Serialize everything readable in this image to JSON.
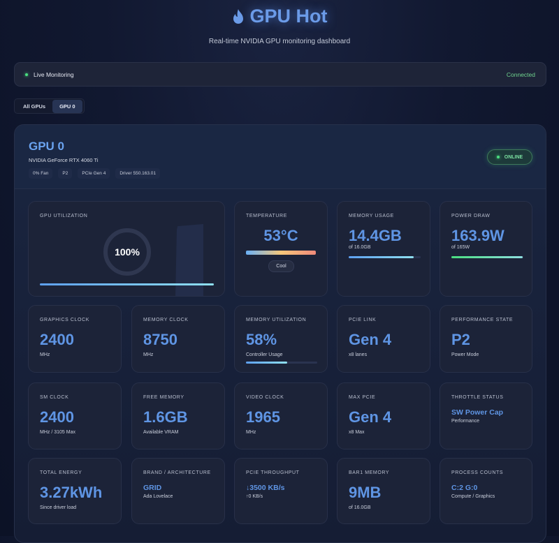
{
  "header": {
    "title": "GPU Hot",
    "subtitle": "Real-time NVIDIA GPU monitoring dashboard",
    "icon": "flame-icon"
  },
  "status": {
    "label": "Live Monitoring",
    "connection": "Connected"
  },
  "tabs": [
    {
      "label": "All GPUs",
      "active": false
    },
    {
      "label": "GPU 0",
      "active": true
    }
  ],
  "gpu": {
    "name": "GPU 0",
    "model": "NVIDIA GeForce RTX 4060 Ti",
    "chips": [
      "0% Fan",
      "P2",
      "PCIe Gen 4",
      "Driver 550.163.01"
    ],
    "status": "ONLINE"
  },
  "metrics": {
    "util": {
      "label": "GPU UTILIZATION",
      "value": "100%",
      "percent": 100
    },
    "temp": {
      "label": "TEMPERATURE",
      "value": "53°C",
      "badge": "Cool"
    },
    "mem": {
      "label": "MEMORY USAGE",
      "value": "14.4GB",
      "sub": "of 16.0GB",
      "percent": 90
    },
    "power": {
      "label": "POWER DRAW",
      "value": "163.9W",
      "sub": "of 165W",
      "percent": 99
    },
    "gclock": {
      "label": "GRAPHICS CLOCK",
      "value": "2400",
      "sub": "MHz"
    },
    "mclock": {
      "label": "MEMORY CLOCK",
      "value": "8750",
      "sub": "MHz"
    },
    "memutil": {
      "label": "MEMORY UTILIZATION",
      "value": "58%",
      "sub": "Controller Usage",
      "percent": 58
    },
    "pcie": {
      "label": "PCIE LINK",
      "value": "Gen 4",
      "sub": "x8 lanes"
    },
    "pstate": {
      "label": "PERFORMANCE STATE",
      "value": "P2",
      "sub": "Power Mode"
    },
    "smclock": {
      "label": "SM CLOCK",
      "value": "2400",
      "sub": "MHz / 3105 Max"
    },
    "free": {
      "label": "FREE MEMORY",
      "value": "1.6GB",
      "sub": "Available VRAM"
    },
    "vclock": {
      "label": "VIDEO CLOCK",
      "value": "1965",
      "sub": "MHz"
    },
    "maxpcie": {
      "label": "MAX PCIE",
      "value": "Gen 4",
      "sub": "x8 Max"
    },
    "throttle": {
      "label": "THROTTLE STATUS",
      "value": "SW Power Cap",
      "sub": "Performance"
    },
    "energy": {
      "label": "TOTAL ENERGY",
      "value": "3.27kWh",
      "sub": "Since driver load"
    },
    "brand": {
      "label": "BRAND / ARCHITECTURE",
      "value": "GRID",
      "sub": "Ada Lovelace"
    },
    "throughput": {
      "label": "PCIE THROUGHPUT",
      "value": "↓3500 KB/s",
      "sub": "↑0 KB/s"
    },
    "bar1": {
      "label": "BAR1 MEMORY",
      "value": "9MB",
      "sub": "of 16.0GB"
    },
    "procs": {
      "label": "PROCESS COUNTS",
      "value": "C:2 G:0",
      "sub": "Compute / Graphics"
    }
  }
}
